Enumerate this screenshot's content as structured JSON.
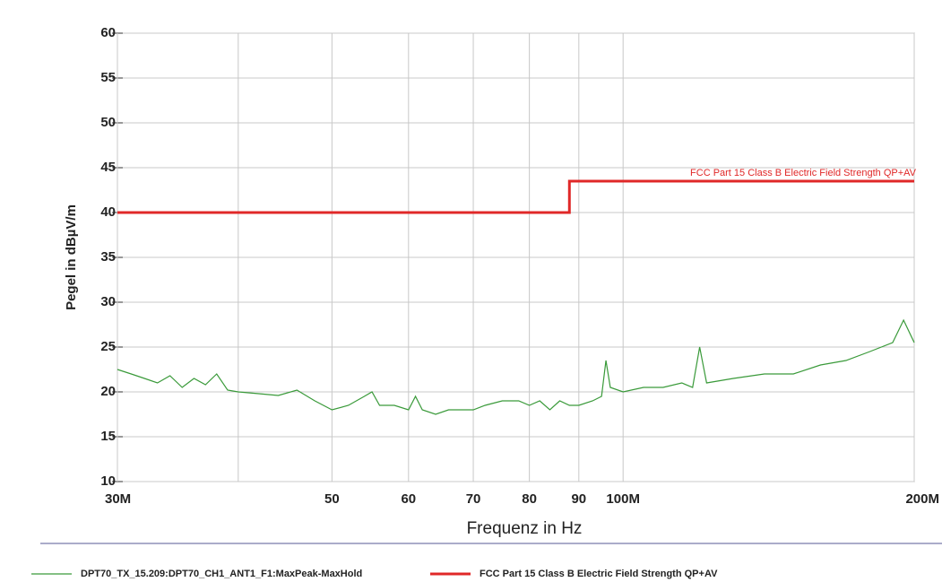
{
  "chart_data": {
    "type": "line",
    "y_label": "Pegel in dBµV/m",
    "x_label": "Frequenz in Hz",
    "xscale": "log",
    "xlim": [
      30000000,
      200000000
    ],
    "xticks": [
      {
        "value": 30000000,
        "label": "30M"
      },
      {
        "value": 40000000,
        "label": null
      },
      {
        "value": 50000000,
        "label": "50"
      },
      {
        "value": 60000000,
        "label": "60"
      },
      {
        "value": 70000000,
        "label": "70"
      },
      {
        "value": 80000000,
        "label": "80"
      },
      {
        "value": 90000000,
        "label": "90"
      },
      {
        "value": 100000000,
        "label": "100M"
      },
      {
        "value": 200000000,
        "label": "200M"
      }
    ],
    "ylim": [
      10,
      60
    ],
    "yticks": [
      10,
      15,
      20,
      25,
      30,
      35,
      40,
      45,
      50,
      55,
      60
    ],
    "grid": true,
    "annotation": "FCC Part 15 Class B Electric Field Strength QP+AV",
    "series": [
      {
        "name": "DPT70_TX_15.209:DPT70_CH1_ANT1_F1:MaxPeak-MaxHold",
        "color": "#3a9a3a",
        "x": [
          30000000,
          31000000,
          32000000,
          33000000,
          34000000,
          35000000,
          36000000,
          37000000,
          38000000,
          39000000,
          40000000,
          42000000,
          44000000,
          46000000,
          48000000,
          50000000,
          52000000,
          54000000,
          55000000,
          56000000,
          58000000,
          60000000,
          61000000,
          62000000,
          64000000,
          66000000,
          68000000,
          70000000,
          72000000,
          75000000,
          78000000,
          80000000,
          82000000,
          84000000,
          86000000,
          88000000,
          90000000,
          93000000,
          95000000,
          96000000,
          97000000,
          100000000,
          105000000,
          110000000,
          115000000,
          118000000,
          120000000,
          122000000,
          130000000,
          140000000,
          150000000,
          160000000,
          170000000,
          180000000,
          190000000,
          195000000,
          200000000
        ],
        "values": [
          22.5,
          22,
          21.5,
          21,
          21.8,
          20.5,
          21.5,
          20.8,
          22,
          20.2,
          20,
          19.8,
          19.6,
          20.2,
          19,
          18,
          18.5,
          19.5,
          20,
          18.5,
          18.5,
          18,
          19.5,
          18,
          17.5,
          18,
          18,
          18,
          18.5,
          19,
          19,
          18.5,
          19,
          18,
          19,
          18.5,
          18.5,
          19,
          19.5,
          23.5,
          20.5,
          20,
          20.5,
          20.5,
          21,
          20.5,
          25,
          21,
          21.5,
          22,
          22,
          23,
          23.5,
          24.5,
          25.5,
          28,
          25.5
        ]
      },
      {
        "name": "FCC Part 15 Class B Electric Field Strength QP+AV",
        "color": "#e02828",
        "x": [
          30000000,
          88000000,
          88000000,
          200000000
        ],
        "values": [
          40,
          40,
          43.5,
          43.5
        ]
      }
    ]
  }
}
